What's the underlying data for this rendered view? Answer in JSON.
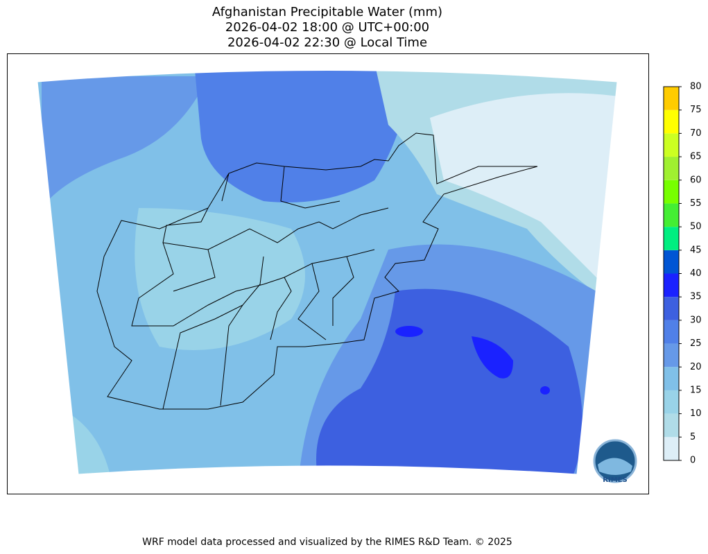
{
  "title": [
    "Afghanistan Precipitable Water (mm)",
    "2026-04-02 18:00 @ UTC+00:00",
    "2026-04-02 22:30 @ Local Time"
  ],
  "colorbar": {
    "ticks": [
      0,
      5,
      10,
      15,
      20,
      25,
      30,
      35,
      40,
      45,
      50,
      55,
      60,
      65,
      70,
      75,
      80
    ],
    "colors": [
      "#ddeef7",
      "#b0dce8",
      "#99d3e8",
      "#80c0e8",
      "#6699e8",
      "#5080e8",
      "#3d60e0",
      "#1a22ff",
      "#0055d4",
      "#00ee80",
      "#44ee33",
      "#77ff00",
      "#a0f030",
      "#ccff22",
      "#ffff00",
      "#ffcc00"
    ]
  },
  "logo": "RIMES",
  "footer": "WRF model data processed and visualized by the RIMES R&D Team. © 2025"
}
